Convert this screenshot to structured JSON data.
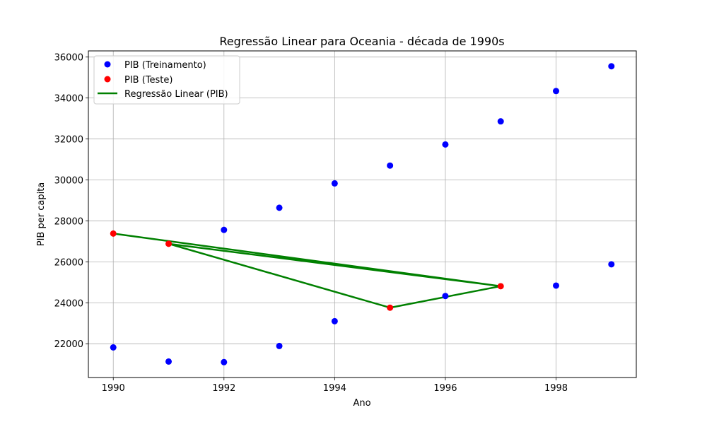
{
  "chart_data": {
    "type": "scatter",
    "title": "Regressão Linear para Oceania - década de 1990s",
    "xlabel": "Ano",
    "ylabel": "PIB per capita",
    "xlim": [
      1989.55,
      1999.45
    ],
    "ylim": [
      20350,
      36300
    ],
    "xticks": [
      1990,
      1992,
      1994,
      1996,
      1998
    ],
    "yticks": [
      22000,
      24000,
      26000,
      28000,
      30000,
      32000,
      34000,
      36000
    ],
    "grid": true,
    "legend_position": "top-left",
    "series": [
      {
        "name": "PIB (Treinamento)",
        "kind": "scatter",
        "color": "#0000ff",
        "points": [
          [
            1990,
            21820
          ],
          [
            1991,
            21130
          ],
          [
            1992,
            21100
          ],
          [
            1993,
            21890
          ],
          [
            1994,
            23100
          ],
          [
            1996,
            24330
          ],
          [
            1998,
            24840
          ],
          [
            1999,
            25880
          ],
          [
            1992,
            27560
          ],
          [
            1993,
            28640
          ],
          [
            1994,
            29830
          ],
          [
            1995,
            30700
          ],
          [
            1996,
            31730
          ],
          [
            1997,
            32860
          ],
          [
            1998,
            34340
          ],
          [
            1999,
            35550
          ]
        ]
      },
      {
        "name": "PIB (Teste)",
        "kind": "scatter",
        "color": "#ff0000",
        "points": [
          [
            1990,
            27380
          ],
          [
            1991,
            26880
          ],
          [
            1995,
            23760
          ],
          [
            1997,
            24810
          ]
        ]
      },
      {
        "name": "Regressão Linear (PIB)",
        "kind": "line",
        "color": "#008000",
        "points": [
          [
            1990,
            27380
          ],
          [
            1997,
            24810
          ],
          [
            1991,
            26880
          ],
          [
            1995,
            23760
          ],
          [
            1997,
            24810
          ]
        ]
      }
    ]
  }
}
